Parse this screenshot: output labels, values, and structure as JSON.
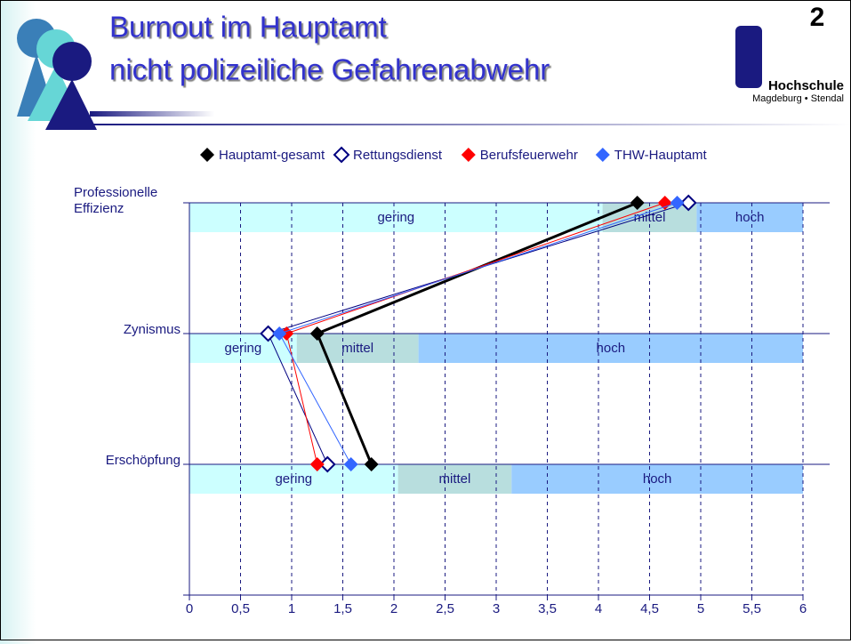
{
  "header": {
    "title_line1": "Burnout im Hauptamt",
    "title_line2": "nicht polizeiliche Gefahrenabwehr",
    "logo": {
      "mark": "h",
      "superscript": "2",
      "name": "Hochschule",
      "place": "Magdeburg • Stendal"
    }
  },
  "chart_data": {
    "type": "line",
    "categories": [
      "Professionelle Effizienz",
      "Zynismus",
      "Erschöpfung"
    ],
    "series": [
      {
        "name": "Hauptamt-gesamt",
        "color": "#000000",
        "marker": "filled",
        "width": 3,
        "values": [
          4.38,
          1.25,
          1.78
        ]
      },
      {
        "name": "Rettungsdienst",
        "color": "#000080",
        "marker": "hollow",
        "width": 1,
        "values": [
          4.88,
          0.77,
          1.35
        ]
      },
      {
        "name": "Berufsfeuerwehr",
        "color": "#ff0000",
        "marker": "filled",
        "width": 1,
        "values": [
          4.65,
          0.95,
          1.25
        ]
      },
      {
        "name": "THW-Hauptamt",
        "color": "#3366ff",
        "marker": "filled",
        "width": 1,
        "values": [
          4.77,
          0.88,
          1.58
        ]
      }
    ],
    "bands": [
      [
        {
          "label": "gering",
          "from": 0,
          "to": 4.04,
          "color": "#ccffff"
        },
        {
          "label": "mittel",
          "from": 4.04,
          "to": 4.96,
          "color": "#b8dede"
        },
        {
          "label": "hoch",
          "from": 4.96,
          "to": 6,
          "color": "#99ccff"
        }
      ],
      [
        {
          "label": "gering",
          "from": 0,
          "to": 1.05,
          "color": "#ccffff"
        },
        {
          "label": "mittel",
          "from": 1.05,
          "to": 2.24,
          "color": "#b8dede"
        },
        {
          "label": "hoch",
          "from": 2.24,
          "to": 6,
          "color": "#99ccff"
        }
      ],
      [
        {
          "label": "gering",
          "from": 0,
          "to": 2.04,
          "color": "#ccffff"
        },
        {
          "label": "mittel",
          "from": 2.04,
          "to": 3.15,
          "color": "#b8dede"
        },
        {
          "label": "hoch",
          "from": 3.15,
          "to": 6,
          "color": "#99ccff"
        }
      ]
    ],
    "xlim": [
      0,
      6
    ],
    "xticks": [
      0,
      {
        "value": 0.5,
        "label": "0,5"
      },
      1,
      {
        "value": 1.5,
        "label": "1,5"
      },
      2,
      {
        "value": 2.5,
        "label": "2,5"
      },
      3,
      {
        "value": 3.5,
        "label": "3,5"
      },
      4,
      {
        "value": 4.5,
        "label": "4,5"
      },
      5,
      {
        "value": 5.5,
        "label": "5,5"
      },
      6
    ],
    "grid": true,
    "legend": "top"
  }
}
